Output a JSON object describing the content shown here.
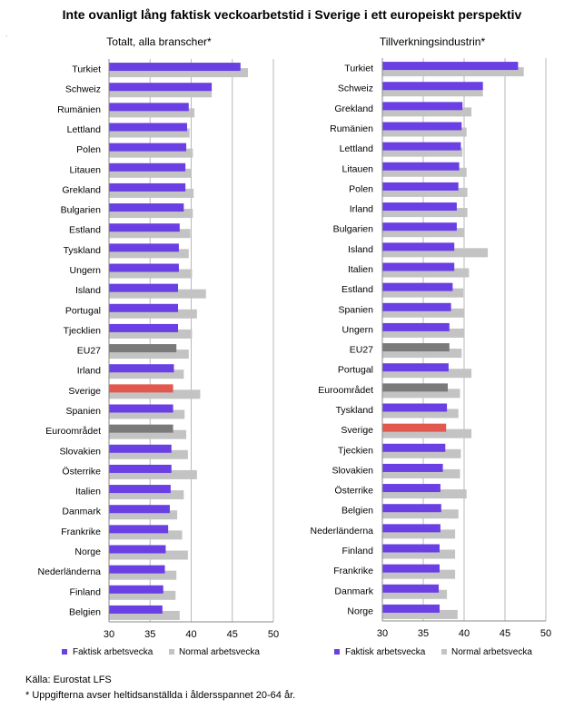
{
  "title": "Inte ovanligt lång faktisk veckoarbetstid i Sverige i ett europeiskt perspektiv",
  "colors": {
    "actual": "#6a3fe3",
    "normal": "#c3c3c3",
    "eu_highlight": "#7a7a7a",
    "sverige_highlight": "#e3584e"
  },
  "legend": {
    "actual_label": "Faktisk arbetsvecka",
    "normal_label": "Normal arbetsvecka"
  },
  "footer": {
    "source": "Källa: Eurostat LFS",
    "note": "* Uppgifterna avser heltidsanställda i åldersspannet 20-64 år."
  },
  "chart_data": [
    {
      "type": "bar",
      "orientation": "horizontal",
      "title": "Totalt, alla branscher*",
      "xlim": [
        30,
        50
      ],
      "xticks": [
        30,
        35,
        40,
        45,
        50
      ],
      "grid": true,
      "legend_position": "bottom",
      "categories": [
        "Turkiet",
        "Schweiz",
        "Rumänien",
        "Lettland",
        "Polen",
        "Litauen",
        "Grekland",
        "Bulgarien",
        "Estland",
        "Tyskland",
        "Ungern",
        "Island",
        "Portugal",
        "Tjecklien",
        "EU27",
        "Irland",
        "Sverige",
        "Spanien",
        "Euroområdet",
        "Slovakien",
        "Österrike",
        "Italien",
        "Danmark",
        "Frankrike",
        "Norge",
        "Nederländerna",
        "Finland",
        "Belgien"
      ],
      "series": [
        {
          "name": "Faktisk arbetsvecka",
          "values": [
            46.0,
            42.5,
            39.7,
            39.5,
            39.4,
            39.3,
            39.3,
            39.1,
            38.6,
            38.5,
            38.5,
            38.4,
            38.4,
            38.4,
            38.2,
            37.9,
            37.8,
            37.8,
            37.8,
            37.6,
            37.6,
            37.5,
            37.4,
            37.2,
            36.9,
            36.8,
            36.6,
            36.5
          ]
        },
        {
          "name": "Normal arbetsvecka",
          "values": [
            46.9,
            42.5,
            40.4,
            39.8,
            40.2,
            40.0,
            40.3,
            40.2,
            39.9,
            39.7,
            40.1,
            41.8,
            40.7,
            40.1,
            39.7,
            39.1,
            41.1,
            39.2,
            39.4,
            39.6,
            40.7,
            39.1,
            38.3,
            38.9,
            39.6,
            38.2,
            38.1,
            38.6
          ]
        }
      ],
      "highlights": {
        "EU27": "eu",
        "Sverige": "sverige",
        "Euroområdet": "eu"
      }
    },
    {
      "type": "bar",
      "orientation": "horizontal",
      "title": "Tillverkningsindustrin*",
      "xlim": [
        30,
        50
      ],
      "xticks": [
        30,
        35,
        40,
        45,
        50
      ],
      "grid": true,
      "legend_position": "bottom",
      "categories": [
        "Turkiet",
        "Schweiz",
        "Grekland",
        "Rumänien",
        "Lettland",
        "Litauen",
        "Polen",
        "Irland",
        "Bulgarien",
        "Island",
        "Italien",
        "Estland",
        "Spanien",
        "Ungern",
        "EU27",
        "Portugal",
        "Euroområdet",
        "Tyskland",
        "Sverige",
        "Tjeckien",
        "Slovakien",
        "Österrike",
        "Belgien",
        "Nederländerna",
        "Finland",
        "Frankrike",
        "Danmark",
        "Norge"
      ],
      "series": [
        {
          "name": "Faktisk arbetsvecka",
          "values": [
            46.6,
            42.3,
            39.8,
            39.7,
            39.6,
            39.4,
            39.3,
            39.1,
            39.1,
            38.8,
            38.8,
            38.6,
            38.4,
            38.2,
            38.2,
            38.1,
            38.0,
            37.9,
            37.8,
            37.7,
            37.4,
            37.1,
            37.2,
            37.1,
            37.0,
            37.0,
            36.9,
            37.0
          ]
        },
        {
          "name": "Normal arbetsvecka",
          "values": [
            47.3,
            42.3,
            40.9,
            40.3,
            39.8,
            40.3,
            40.4,
            40.4,
            40.0,
            42.9,
            40.6,
            39.9,
            40.0,
            40.0,
            39.7,
            40.9,
            39.5,
            39.3,
            40.9,
            39.6,
            39.5,
            40.3,
            39.3,
            38.9,
            38.9,
            38.9,
            37.9,
            39.2
          ]
        }
      ],
      "highlights": {
        "EU27": "eu",
        "Euroområdet": "eu",
        "Sverige": "sverige"
      }
    }
  ]
}
